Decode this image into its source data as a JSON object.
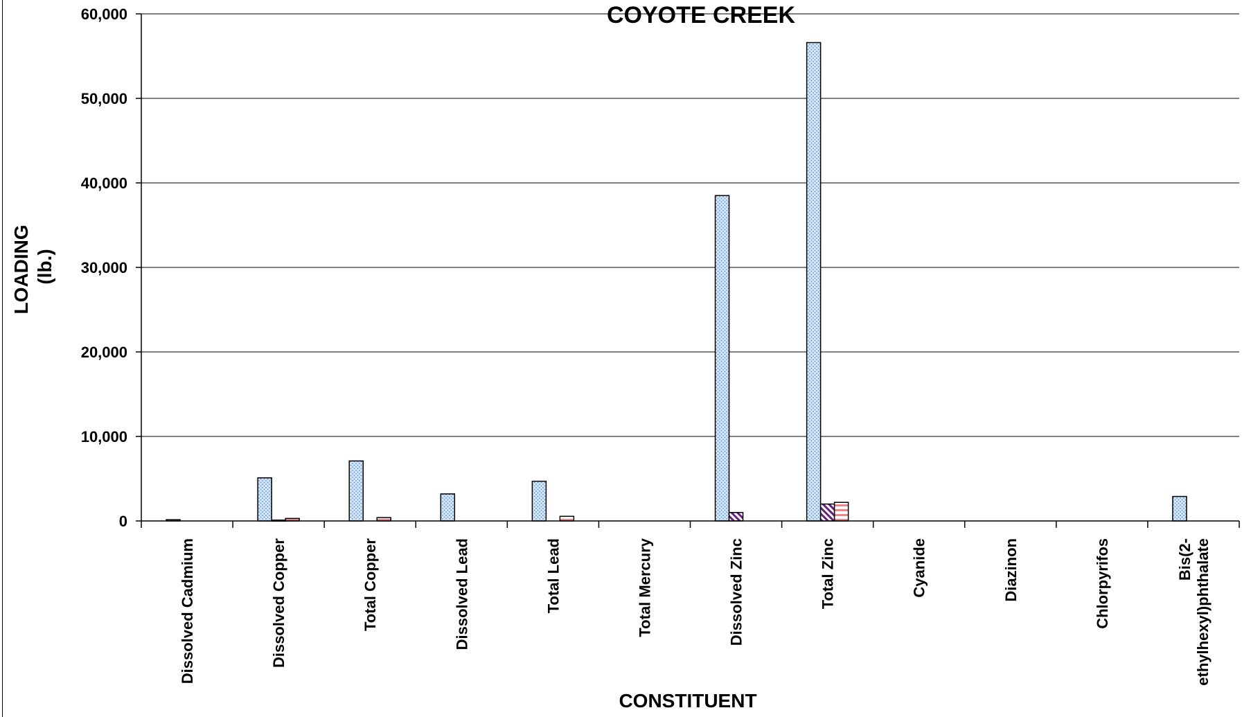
{
  "chart_data": {
    "type": "bar",
    "title": "COYOTE CREEK",
    "xlabel": "CONSTITUENT",
    "ylabel_lines": [
      "LOADING",
      "(lb.)"
    ],
    "ylim": [
      0,
      60000
    ],
    "yticks": [
      0,
      10000,
      20000,
      30000,
      40000,
      50000,
      60000
    ],
    "ytick_labels": [
      "0",
      "10,000",
      "20,000",
      "30,000",
      "40,000",
      "50,000",
      "60,000"
    ],
    "grid": true,
    "categories": [
      [
        "Dissolved Cadmium"
      ],
      [
        "Dissolved Copper"
      ],
      [
        "Total Copper"
      ],
      [
        "Dissolved Lead"
      ],
      [
        "Total Lead"
      ],
      [
        "Total Mercury"
      ],
      [
        "Dissolved Zinc"
      ],
      [
        "Total Zinc"
      ],
      [
        "Cyanide"
      ],
      [
        "Diazinon"
      ],
      [
        "Chlorpyrifos"
      ],
      [
        "Bis(2-",
        "ethylhexyl)phthalate"
      ]
    ],
    "series": [
      {
        "values": [
          150,
          5100,
          7100,
          3200,
          4700,
          0,
          38500,
          56600,
          0,
          0,
          0,
          2900
        ],
        "color": "#cfe3f7",
        "pattern": "dots"
      },
      {
        "values": [
          0,
          100,
          0,
          0,
          0,
          0,
          1000,
          2000,
          0,
          0,
          0,
          0
        ],
        "color": "#7a2a8c",
        "pattern": "diagonal"
      },
      {
        "values": [
          0,
          300,
          400,
          0,
          550,
          0,
          0,
          2200,
          0,
          0,
          0,
          0
        ],
        "color": "#f28a8a",
        "pattern": "horizontal"
      }
    ]
  }
}
